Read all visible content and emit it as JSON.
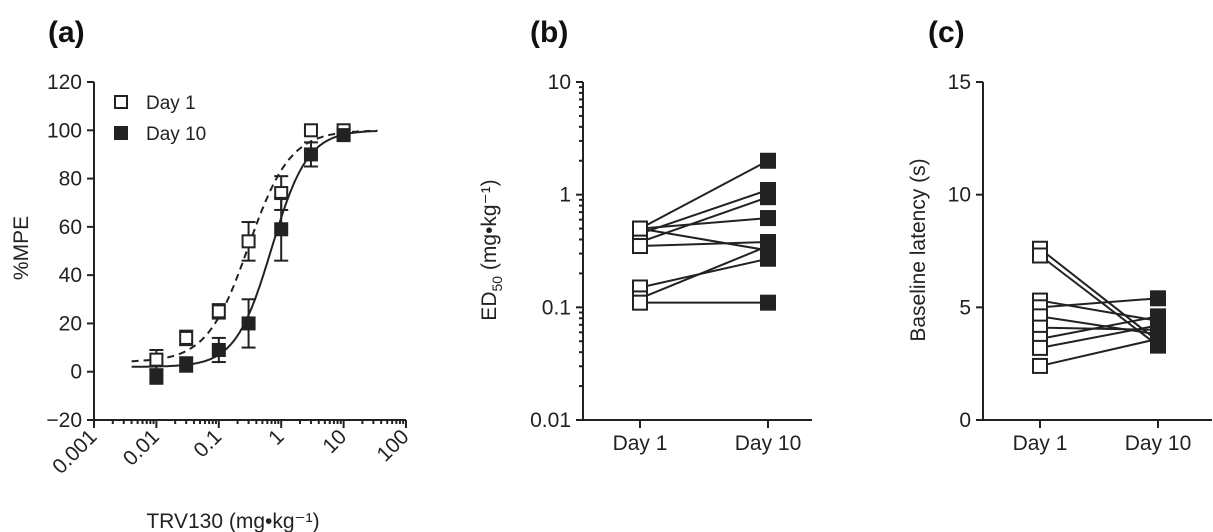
{
  "chart_data": [
    {
      "panel": "(a)",
      "type": "scatter",
      "x_scale": "log",
      "xlabel": "TRV130 (mg•kg⁻¹)",
      "ylabel": "%MPE",
      "xlim": [
        0.001,
        100
      ],
      "ylim": [
        -20,
        120
      ],
      "x_ticks": [
        "0.001",
        "0.01",
        "0.1",
        "1",
        "10",
        "100"
      ],
      "y_ticks": [
        "-20",
        "0",
        "20",
        "40",
        "60",
        "80",
        "100",
        "120"
      ],
      "legend_position": "top-left",
      "series": [
        {
          "name": "Day 1",
          "marker": "open-square",
          "fit_line": "dashed",
          "x": [
            0.01,
            0.03,
            0.1,
            0.3,
            1,
            3,
            10
          ],
          "y": [
            5,
            14,
            25,
            54,
            74,
            100,
            100
          ],
          "err": [
            4,
            3,
            3,
            8,
            7,
            0,
            0
          ],
          "fit": {
            "bottom": 4,
            "top": 100,
            "ec50": 0.3,
            "hill": 1.3
          }
        },
        {
          "name": "Day 10",
          "marker": "filled-square",
          "fit_line": "solid",
          "x": [
            0.01,
            0.03,
            0.1,
            0.3,
            1,
            3,
            10
          ],
          "y": [
            -2,
            3,
            9,
            20,
            59,
            90,
            98
          ],
          "err": [
            3,
            3,
            5,
            10,
            13,
            5,
            2
          ],
          "fit": {
            "bottom": 2,
            "top": 100,
            "ec50": 0.7,
            "hill": 1.5
          }
        }
      ]
    },
    {
      "panel": "(b)",
      "type": "line",
      "y_scale": "log",
      "ylabel_main": "ED",
      "ylabel_sub": "50",
      "ylabel_rest": " (mg•kg⁻¹)",
      "ylim": [
        0.01,
        10
      ],
      "y_ticks": [
        "0.01",
        "0.1",
        "1",
        "10"
      ],
      "categories": [
        "Day 1",
        "Day 10"
      ],
      "pairs": [
        [
          0.5,
          2.0
        ],
        [
          0.45,
          1.1
        ],
        [
          0.38,
          0.95
        ],
        [
          0.5,
          0.62
        ],
        [
          0.35,
          0.38
        ],
        [
          0.5,
          0.32
        ],
        [
          0.15,
          0.27
        ],
        [
          0.12,
          0.35
        ],
        [
          0.11,
          0.11
        ]
      ]
    },
    {
      "panel": "(c)",
      "type": "line",
      "ylabel": "Baseline latency (s)",
      "ylim": [
        0,
        15
      ],
      "y_ticks": [
        "0",
        "5",
        "10",
        "15"
      ],
      "categories": [
        "Day 1",
        "Day 10"
      ],
      "pairs": [
        [
          7.6,
          3.5
        ],
        [
          7.3,
          3.3
        ],
        [
          5.3,
          4.4
        ],
        [
          5.0,
          5.4
        ],
        [
          4.6,
          3.8
        ],
        [
          4.1,
          4.0
        ],
        [
          3.6,
          4.6
        ],
        [
          3.2,
          4.2
        ],
        [
          2.4,
          3.6
        ]
      ]
    }
  ]
}
